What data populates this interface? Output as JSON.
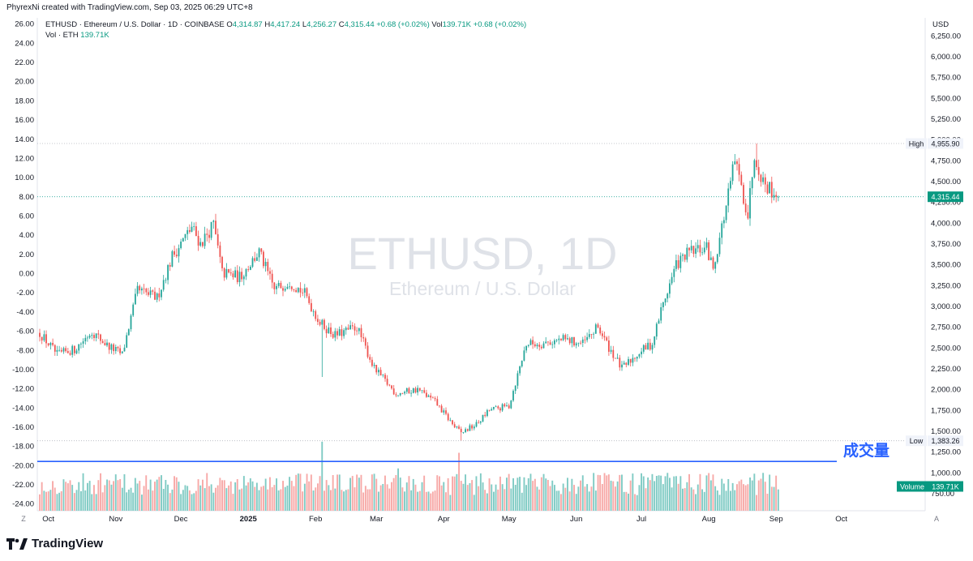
{
  "creator_line": "PhyrexNi created with TradingView.com, Sep 03, 2025 06:29 UTC+8",
  "legend": {
    "symbol": "ETHUSD · Ethereum / U.S. Dollar · 1D · COINBASE",
    "o_label": "O",
    "o_value": "4,314.87",
    "h_label": "H",
    "h_value": "4,417.24",
    "l_label": "L",
    "l_value": "4,256.27",
    "c_label": "C",
    "c_value": "4,315.44",
    "change": "+0.68 (+0.02%)",
    "vol_label": "Vol",
    "vol_value": "139.71K",
    "vol_change": "+0.68 (+0.02%)",
    "vol_line_label": "Vol · ETH",
    "vol_line_value": "139.71K"
  },
  "watermark": {
    "main": "ETHUSD, 1D",
    "sub": "Ethereum / U.S. Dollar"
  },
  "annotation": "成交量",
  "price_axis": {
    "currency": "USD",
    "labels": [
      "6,250.00",
      "6,000.00",
      "5,750.00",
      "5,500.00",
      "5,250.00",
      "5,000.00",
      "4,750.00",
      "4,500.00",
      "4,250.00",
      "4,000.00",
      "3,750.00",
      "3,500.00",
      "3,250.00",
      "3,000.00",
      "2,750.00",
      "2,500.00",
      "2,250.00",
      "2,000.00",
      "1,750.00",
      "1,500.00",
      "1,250.00",
      "1,000.00",
      "750.00"
    ],
    "high_label": "High",
    "high_value": "4,955.90",
    "low_label": "Low",
    "low_value": "1,383.26",
    "last_value": "4,315.44",
    "volume_label": "Volume",
    "volume_value": "139.71K"
  },
  "left_axis": {
    "labels": [
      "26.00",
      "24.00",
      "22.00",
      "20.00",
      "18.00",
      "16.00",
      "14.00",
      "12.00",
      "10.00",
      "8.00",
      "6.00",
      "4.00",
      "2.00",
      "0.00",
      "-2.00",
      "-4.00",
      "-6.00",
      "-8.00",
      "-10.00",
      "-12.00",
      "-14.00",
      "-16.00",
      "-18.00",
      "-20.00",
      "-22.00",
      "-24.00"
    ]
  },
  "time_axis": {
    "labels": [
      "Oct",
      "Nov",
      "Dec",
      "2025",
      "Feb",
      "Mar",
      "Apr",
      "May",
      "Jun",
      "Jul",
      "Aug",
      "Sep",
      "Oct"
    ],
    "left_button": "Z",
    "right_button": "A"
  },
  "footer": {
    "brand": "TradingView"
  },
  "colors": {
    "up": "#26a69a",
    "down": "#ef5350",
    "up_vol": "#80cbc4",
    "down_vol": "#f7a9a7",
    "hline": "#2962ff",
    "label_bg": "#089981"
  },
  "chart_data": {
    "type": "candlestick",
    "symbol": "ETHUSD",
    "interval": "1D",
    "y_axis": {
      "unit": "USD",
      "ylim": [
        700,
        6400
      ],
      "scale": "linear"
    },
    "x_range": [
      "2024-09-27",
      "2025-09-02"
    ],
    "highlight_lines": {
      "high": 4955.9,
      "low": 1383.26,
      "last_close": 4315.44
    },
    "volume_reference_line": 1135,
    "approx_close_path": [
      [
        "2024-09-27",
        2680
      ],
      [
        "2024-10-05",
        2420
      ],
      [
        "2024-10-13",
        2480
      ],
      [
        "2024-10-21",
        2700
      ],
      [
        "2024-10-28",
        2530
      ],
      [
        "2024-11-04",
        2420
      ],
      [
        "2024-11-11",
        3190
      ],
      [
        "2024-11-20",
        3100
      ],
      [
        "2024-11-27",
        3600
      ],
      [
        "2024-12-06",
        3950
      ],
      [
        "2024-12-10",
        3750
      ],
      [
        "2024-12-16",
        3980
      ],
      [
        "2024-12-20",
        3400
      ],
      [
        "2024-12-28",
        3350
      ],
      [
        "2025-01-06",
        3650
      ],
      [
        "2025-01-13",
        3200
      ],
      [
        "2025-01-20",
        3300
      ],
      [
        "2025-01-27",
        3150
      ],
      [
        "2025-02-03",
        2800
      ],
      [
        "2025-02-10",
        2650
      ],
      [
        "2025-02-20",
        2750
      ],
      [
        "2025-02-28",
        2250
      ],
      [
        "2025-03-10",
        1950
      ],
      [
        "2025-03-20",
        2000
      ],
      [
        "2025-03-28",
        1850
      ],
      [
        "2025-04-06",
        1550
      ],
      [
        "2025-04-09",
        1480
      ],
      [
        "2025-04-16",
        1580
      ],
      [
        "2025-04-22",
        1750
      ],
      [
        "2025-05-01",
        1800
      ],
      [
        "2025-05-09",
        2550
      ],
      [
        "2025-05-16",
        2550
      ],
      [
        "2025-05-26",
        2600
      ],
      [
        "2025-06-04",
        2550
      ],
      [
        "2025-06-11",
        2750
      ],
      [
        "2025-06-15",
        2550
      ],
      [
        "2025-06-22",
        2250
      ],
      [
        "2025-06-30",
        2450
      ],
      [
        "2025-07-06",
        2550
      ],
      [
        "2025-07-10",
        2950
      ],
      [
        "2025-07-17",
        3500
      ],
      [
        "2025-07-23",
        3650
      ],
      [
        "2025-07-31",
        3700
      ],
      [
        "2025-08-03",
        3450
      ],
      [
        "2025-08-09",
        4200
      ],
      [
        "2025-08-13",
        4750
      ],
      [
        "2025-08-19",
        4100
      ],
      [
        "2025-08-22",
        4850
      ],
      [
        "2025-08-26",
        4500
      ],
      [
        "2025-09-02",
        4315
      ]
    ]
  }
}
